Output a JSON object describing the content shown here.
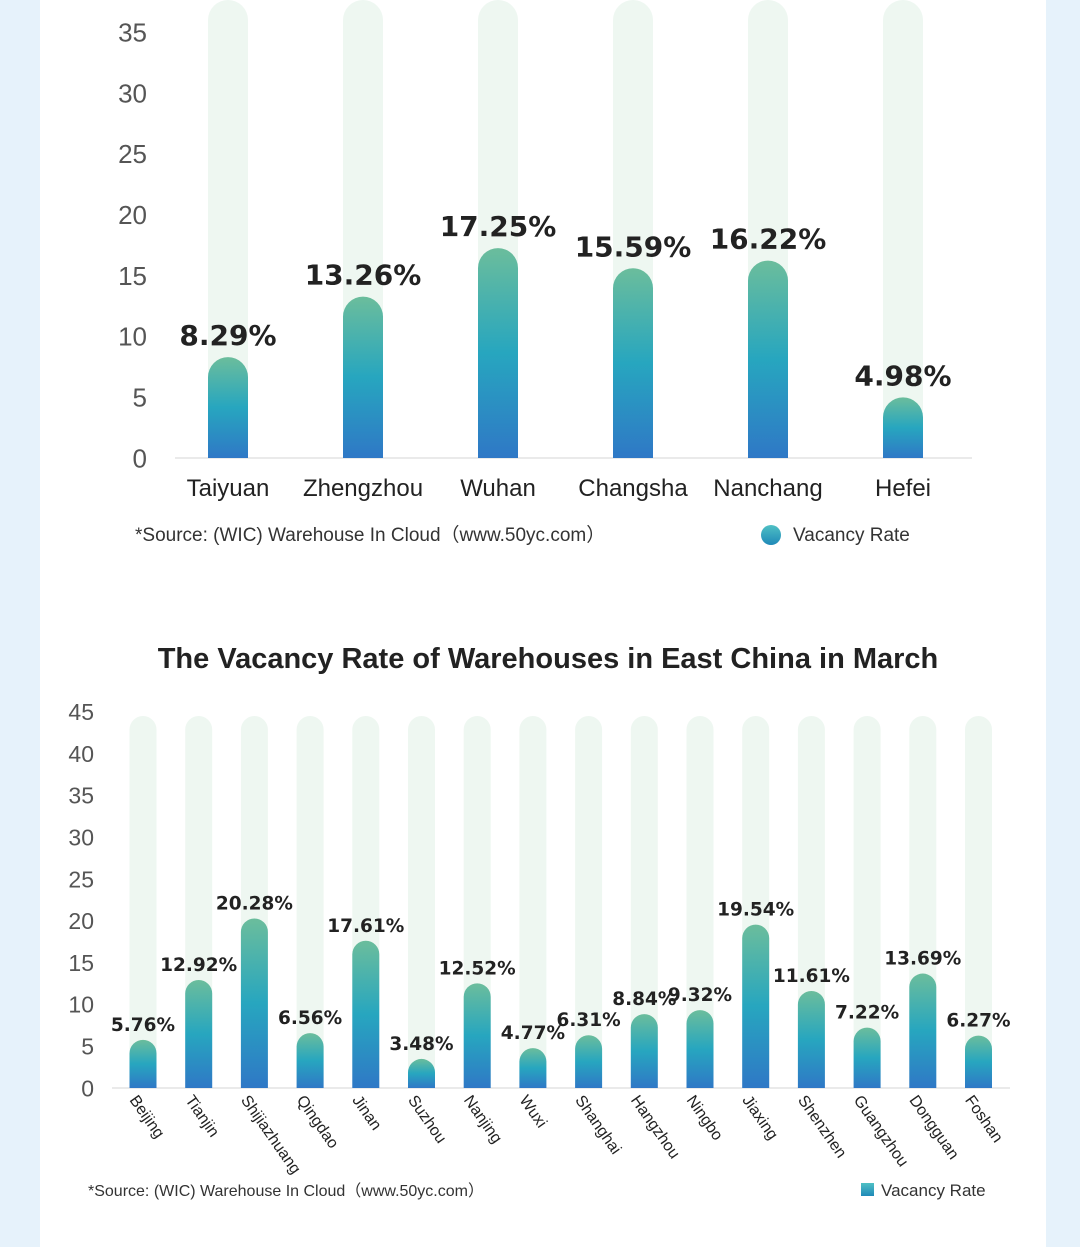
{
  "chart_data": [
    {
      "type": "bar",
      "title": "",
      "categories": [
        "Taiyuan",
        "Zhengzhou",
        "Wuhan",
        "Changsha",
        "Nanchang",
        "Hefei"
      ],
      "series": [
        {
          "name": "Vacancy Rate",
          "values": [
            8.29,
            13.26,
            17.25,
            15.59,
            16.22,
            4.98
          ]
        }
      ],
      "value_labels": [
        "8.29%",
        "13.26%",
        "17.25%",
        "15.59%",
        "16.22%",
        "4.98%"
      ],
      "yticks": [
        "0",
        "5",
        "10",
        "15",
        "20",
        "25",
        "30",
        "35"
      ],
      "ylim": [
        0,
        35
      ],
      "xlabel": "",
      "ylabel": "",
      "source": "*Source: (WIC) Warehouse In Cloud（www.50yc.com）",
      "legend": "Vacancy Rate",
      "colors": {
        "bar_top": "#6bbd9c",
        "bar_mid": "#27a6bf",
        "bar_bottom": "#2f78c6",
        "track": "#eef7f1",
        "axis": "#e3e3e3"
      }
    },
    {
      "type": "bar",
      "title": "The Vacancy Rate of Warehouses in East China in March",
      "categories": [
        "Beijing",
        "Tianjin",
        "Shijiazhuang",
        "Qingdao",
        "Jinan",
        "Suzhou",
        "Nanjing",
        "Wuxi",
        "Shanghai",
        "Hangzhou",
        "Ningbo",
        "Jiaxing",
        "Shenzhen",
        "Guangzhou",
        "Dongguan",
        "Foshan"
      ],
      "series": [
        {
          "name": "Vacancy Rate",
          "values": [
            5.76,
            12.92,
            20.28,
            6.56,
            17.61,
            3.48,
            12.52,
            4.77,
            6.31,
            8.84,
            9.32,
            19.54,
            11.61,
            7.22,
            13.69,
            6.27
          ]
        }
      ],
      "value_labels": [
        "5.76%",
        "12.92%",
        "20.28%",
        "6.56%",
        "17.61%",
        "3.48%",
        "12.52%",
        "4.77%",
        "6.31%",
        "8.84%",
        "9.32%",
        "19.54%",
        "11.61%",
        "7.22%",
        "13.69%",
        "6.27%"
      ],
      "yticks": [
        "0",
        "5",
        "10",
        "15",
        "20",
        "25",
        "30",
        "35",
        "40",
        "45"
      ],
      "ylim": [
        0,
        45
      ],
      "xlabel": "",
      "ylabel": "",
      "source": "*Source: (WIC) Warehouse In Cloud（www.50yc.com）",
      "legend": "Vacancy Rate",
      "colors": {
        "bar_top": "#6bbd9c",
        "bar_mid": "#27a6bf",
        "bar_bottom": "#2f78c6",
        "track": "#eef7f1",
        "axis": "#e3e3e3"
      }
    }
  ]
}
